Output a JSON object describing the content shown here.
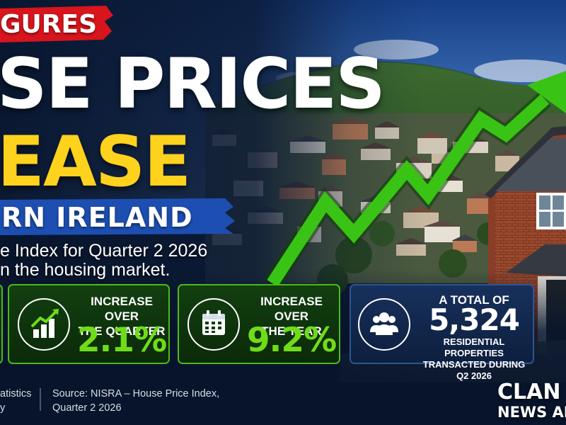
{
  "colors": {
    "accent_red": "#d8141c",
    "accent_blue": "#1d4fb3",
    "headline_yellow": "#ffd21e",
    "stat_green": "#6fdc1a",
    "card_green_border": "#4cbb17",
    "card_blue": "#17305c"
  },
  "header": {
    "kicker": "GURES",
    "headline_line1": "SE PRICES",
    "headline_line2": "EASE",
    "region": "RN IRELAND"
  },
  "subtitle": {
    "line1": "e Index for Quarter 2 2026",
    "line2": "n the housing market."
  },
  "stats": [
    {
      "icon": "bar-chart-icon",
      "label_line1": "INCREASE OVER",
      "label_line2": "THE QUARTER",
      "value": "2.1%"
    },
    {
      "icon": "calendar-icon",
      "label_line1": "INCREASE OVER",
      "label_line2": "THE YEAR",
      "value": "9.2%"
    },
    {
      "icon": "people-icon",
      "label_line1": "A TOTAL OF",
      "value": "5,324",
      "label_line2": "RESIDENTIAL PROPERTIES",
      "label_line3": "TRANSACTED DURING Q2 2026"
    }
  ],
  "footer": {
    "left_line1": "atistics",
    "left_line2": "y",
    "source_line1": "Source: NISRA – House Price Index,",
    "source_line2": "Quarter 2 2026"
  },
  "brand": {
    "line1": "CLAN",
    "line2": "NEWS AN"
  }
}
